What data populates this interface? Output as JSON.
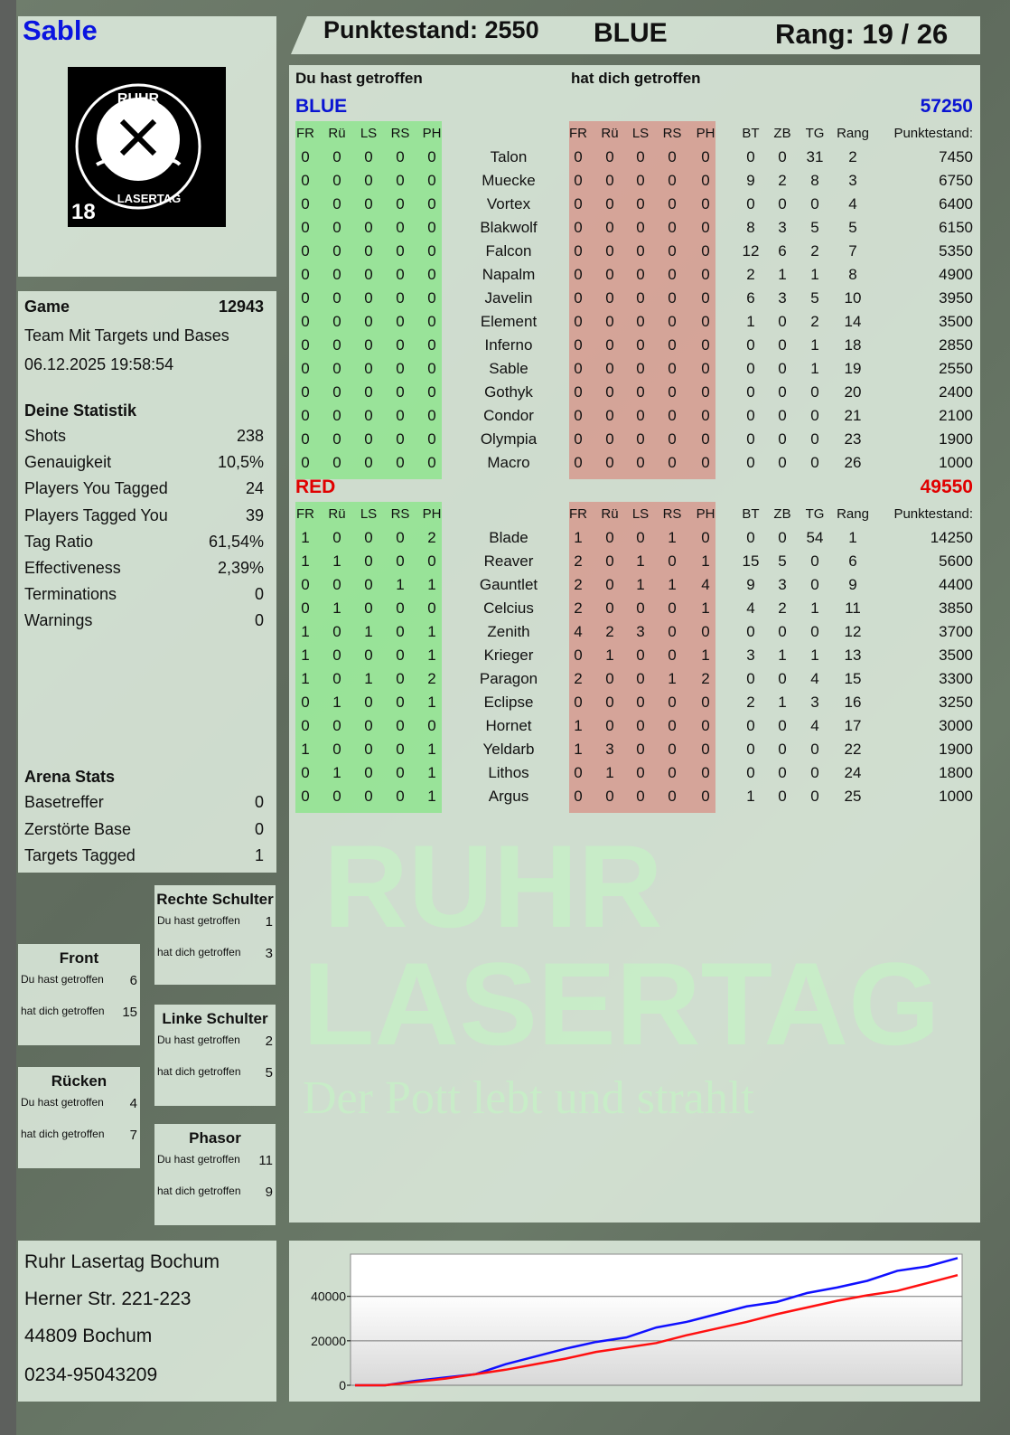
{
  "player": {
    "name": "Sable",
    "logo_text": "RUHR LASERTAG",
    "logo_badge": "18"
  },
  "header": {
    "score_label": "Punktestand: 2550",
    "team": "BLUE",
    "rank_label": "Rang: 19 / 26"
  },
  "game": {
    "label": "Game",
    "id": "12943",
    "mode": "Team Mit Targets und Bases",
    "datetime": "06.12.2025 19:58:54"
  },
  "stats": {
    "title": "Deine Statistik",
    "items": [
      {
        "label": "Shots",
        "value": "238"
      },
      {
        "label": "Genauigkeit",
        "value": "10,5%"
      },
      {
        "label": "Players You Tagged",
        "value": "24"
      },
      {
        "label": "Players Tagged You",
        "value": "39"
      },
      {
        "label": "Tag Ratio",
        "value": "61,54%"
      },
      {
        "label": "Effectiveness",
        "value": "2,39%"
      },
      {
        "label": "Terminations",
        "value": "0"
      },
      {
        "label": "Warnings",
        "value": "0"
      }
    ]
  },
  "arena": {
    "title": "Arena Stats",
    "items": [
      {
        "label": "Basetreffer",
        "value": "0"
      },
      {
        "label": "Zerstörte Base",
        "value": "0"
      },
      {
        "label": "Targets Tagged",
        "value": "1"
      }
    ]
  },
  "body_parts": [
    {
      "title": "Rechte Schulter",
      "hit_label": "Du hast getroffen",
      "hit": "1",
      "got_label": "hat dich getroffen",
      "got": "3"
    },
    {
      "title": "Front",
      "hit_label": "Du hast getroffen",
      "hit": "6",
      "got_label": "hat dich getroffen",
      "got": "15"
    },
    {
      "title": "Linke Schulter",
      "hit_label": "Du hast getroffen",
      "hit": "2",
      "got_label": "hat dich getroffen",
      "got": "5"
    },
    {
      "title": "Rücken",
      "hit_label": "Du hast getroffen",
      "hit": "4",
      "got_label": "hat dich getroffen",
      "got": "7"
    },
    {
      "title": "Phasor",
      "hit_label": "Du hast getroffen",
      "hit": "11",
      "got_label": "hat dich getroffen",
      "got": "9"
    }
  ],
  "address": {
    "line1": "Ruhr Lasertag Bochum",
    "line2": "Herner Str. 221-223",
    "line3": "44809 Bochum",
    "line4": "0234-95043209"
  },
  "table": {
    "you_hit_label": "Du hast getroffen",
    "hit_you_label": "hat dich getroffen",
    "columns_hit": [
      "FR",
      "Rü",
      "LS",
      "RS",
      "PH"
    ],
    "columns_stats": [
      "BT",
      "ZB",
      "TG",
      "Rang",
      "Punktestand:"
    ],
    "teams": [
      {
        "name": "BLUE",
        "total": "57250",
        "color": "#0a14d2",
        "rows": [
          [
            "Talon",
            [
              0,
              0,
              0,
              0,
              0
            ],
            [
              0,
              0,
              0,
              0,
              0
            ],
            [
              0,
              0,
              31,
              2,
              7450
            ]
          ],
          [
            "Muecke",
            [
              0,
              0,
              0,
              0,
              0
            ],
            [
              0,
              0,
              0,
              0,
              0
            ],
            [
              9,
              2,
              8,
              3,
              6750
            ]
          ],
          [
            "Vortex",
            [
              0,
              0,
              0,
              0,
              0
            ],
            [
              0,
              0,
              0,
              0,
              0
            ],
            [
              0,
              0,
              0,
              4,
              6400
            ]
          ],
          [
            "Blakwolf",
            [
              0,
              0,
              0,
              0,
              0
            ],
            [
              0,
              0,
              0,
              0,
              0
            ],
            [
              8,
              3,
              5,
              5,
              6150
            ]
          ],
          [
            "Falcon",
            [
              0,
              0,
              0,
              0,
              0
            ],
            [
              0,
              0,
              0,
              0,
              0
            ],
            [
              12,
              6,
              2,
              7,
              5350
            ]
          ],
          [
            "Napalm",
            [
              0,
              0,
              0,
              0,
              0
            ],
            [
              0,
              0,
              0,
              0,
              0
            ],
            [
              2,
              1,
              1,
              8,
              4900
            ]
          ],
          [
            "Javelin",
            [
              0,
              0,
              0,
              0,
              0
            ],
            [
              0,
              0,
              0,
              0,
              0
            ],
            [
              6,
              3,
              5,
              10,
              3950
            ]
          ],
          [
            "Element",
            [
              0,
              0,
              0,
              0,
              0
            ],
            [
              0,
              0,
              0,
              0,
              0
            ],
            [
              1,
              0,
              2,
              14,
              3500
            ]
          ],
          [
            "Inferno",
            [
              0,
              0,
              0,
              0,
              0
            ],
            [
              0,
              0,
              0,
              0,
              0
            ],
            [
              0,
              0,
              1,
              18,
              2850
            ]
          ],
          [
            "Sable",
            [
              0,
              0,
              0,
              0,
              0
            ],
            [
              0,
              0,
              0,
              0,
              0
            ],
            [
              0,
              0,
              1,
              19,
              2550
            ]
          ],
          [
            "Gothyk",
            [
              0,
              0,
              0,
              0,
              0
            ],
            [
              0,
              0,
              0,
              0,
              0
            ],
            [
              0,
              0,
              0,
              20,
              2400
            ]
          ],
          [
            "Condor",
            [
              0,
              0,
              0,
              0,
              0
            ],
            [
              0,
              0,
              0,
              0,
              0
            ],
            [
              0,
              0,
              0,
              21,
              2100
            ]
          ],
          [
            "Olympia",
            [
              0,
              0,
              0,
              0,
              0
            ],
            [
              0,
              0,
              0,
              0,
              0
            ],
            [
              0,
              0,
              0,
              23,
              1900
            ]
          ],
          [
            "Macro",
            [
              0,
              0,
              0,
              0,
              0
            ],
            [
              0,
              0,
              0,
              0,
              0
            ],
            [
              0,
              0,
              0,
              26,
              1000
            ]
          ]
        ]
      },
      {
        "name": "RED",
        "total": "49550",
        "color": "#e00000",
        "rows": [
          [
            "Blade",
            [
              1,
              0,
              0,
              0,
              2
            ],
            [
              1,
              0,
              0,
              1,
              0
            ],
            [
              0,
              0,
              54,
              1,
              14250
            ]
          ],
          [
            "Reaver",
            [
              1,
              1,
              0,
              0,
              0
            ],
            [
              2,
              0,
              1,
              0,
              1
            ],
            [
              15,
              5,
              0,
              6,
              5600
            ]
          ],
          [
            "Gauntlet",
            [
              0,
              0,
              0,
              1,
              1
            ],
            [
              2,
              0,
              1,
              1,
              4
            ],
            [
              9,
              3,
              0,
              9,
              4400
            ]
          ],
          [
            "Celcius",
            [
              0,
              1,
              0,
              0,
              0
            ],
            [
              2,
              0,
              0,
              0,
              1
            ],
            [
              4,
              2,
              1,
              11,
              3850
            ]
          ],
          [
            "Zenith",
            [
              1,
              0,
              1,
              0,
              1
            ],
            [
              4,
              2,
              3,
              0,
              0
            ],
            [
              0,
              0,
              0,
              12,
              3700
            ]
          ],
          [
            "Krieger",
            [
              1,
              0,
              0,
              0,
              1
            ],
            [
              0,
              1,
              0,
              0,
              1
            ],
            [
              3,
              1,
              1,
              13,
              3500
            ]
          ],
          [
            "Paragon",
            [
              1,
              0,
              1,
              0,
              2
            ],
            [
              2,
              0,
              0,
              1,
              2
            ],
            [
              0,
              0,
              4,
              15,
              3300
            ]
          ],
          [
            "Eclipse",
            [
              0,
              1,
              0,
              0,
              1
            ],
            [
              0,
              0,
              0,
              0,
              0
            ],
            [
              2,
              1,
              3,
              16,
              3250
            ]
          ],
          [
            "Hornet",
            [
              0,
              0,
              0,
              0,
              0
            ],
            [
              1,
              0,
              0,
              0,
              0
            ],
            [
              0,
              0,
              4,
              17,
              3000
            ]
          ],
          [
            "Yeldarb",
            [
              1,
              0,
              0,
              0,
              1
            ],
            [
              1,
              3,
              0,
              0,
              0
            ],
            [
              0,
              0,
              0,
              22,
              1900
            ]
          ],
          [
            "Lithos",
            [
              0,
              1,
              0,
              0,
              1
            ],
            [
              0,
              1,
              0,
              0,
              0
            ],
            [
              0,
              0,
              0,
              24,
              1800
            ]
          ],
          [
            "Argus",
            [
              0,
              0,
              0,
              0,
              1
            ],
            [
              0,
              0,
              0,
              0,
              0
            ],
            [
              1,
              0,
              0,
              25,
              1000
            ]
          ]
        ]
      }
    ]
  },
  "watermark": {
    "line1": "RUHR",
    "line2": "LASERTAG",
    "slogan": "Der Pott lebt und strahlt"
  },
  "chart_data": {
    "type": "line",
    "ylim": [
      0,
      59000
    ],
    "yticks": [
      "0",
      "20000",
      "40000"
    ],
    "grid": true,
    "series": [
      {
        "color": "#1010ff",
        "values": [
          0,
          0,
          2000,
          3500,
          5000,
          9500,
          13000,
          16500,
          19500,
          21500,
          26000,
          28500,
          32000,
          35500,
          37500,
          41500,
          44000,
          47000,
          51500,
          53500,
          57250
        ]
      },
      {
        "color": "#ff1010",
        "values": [
          0,
          0,
          1500,
          3000,
          5000,
          7000,
          9500,
          12000,
          15000,
          17000,
          19000,
          22500,
          25500,
          28500,
          32000,
          35000,
          38000,
          40500,
          42500,
          46000,
          49550
        ]
      }
    ]
  }
}
